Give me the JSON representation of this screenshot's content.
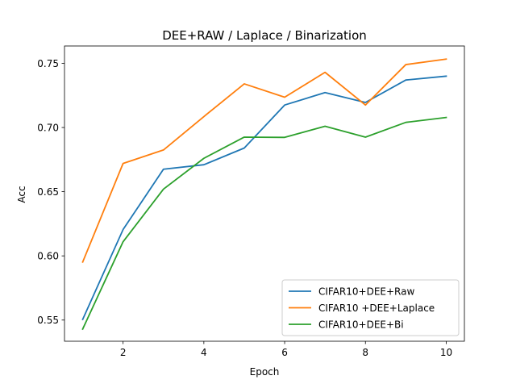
{
  "chart_data": {
    "type": "line",
    "title": "DEE+RAW / Laplace / Binarization",
    "xlabel": "Epoch",
    "ylabel": "Acc",
    "xlim": [
      0.55,
      10.45
    ],
    "ylim": [
      0.5335,
      0.7635
    ],
    "xticks": [
      2,
      4,
      6,
      8,
      10
    ],
    "yticks": [
      0.55,
      0.6,
      0.65,
      0.7,
      0.75
    ],
    "xtick_labels": [
      "2",
      "4",
      "6",
      "8",
      "10"
    ],
    "ytick_labels": [
      "0.55",
      "0.60",
      "0.65",
      "0.70",
      "0.75"
    ],
    "grid": false,
    "legend_position": "lower-right",
    "x": [
      1,
      2,
      3,
      4,
      5,
      6,
      7,
      8,
      9,
      10
    ],
    "series": [
      {
        "name": "CIFAR10+DEE+Raw",
        "color": "#1f77b4",
        "values": [
          0.5505,
          0.6205,
          0.6675,
          0.671,
          0.684,
          0.7175,
          0.7272,
          0.7195,
          0.737,
          0.74
        ]
      },
      {
        "name": "CIFAR10 +DEE+Laplace",
        "color": "#ff7f0e",
        "values": [
          0.5952,
          0.672,
          0.6825,
          0.7085,
          0.734,
          0.7236,
          0.743,
          0.7175,
          0.749,
          0.7533
        ]
      },
      {
        "name": "CIFAR10+DEE+Bi",
        "color": "#2ca02c",
        "values": [
          0.543,
          0.611,
          0.652,
          0.676,
          0.6925,
          0.6923,
          0.701,
          0.6925,
          0.704,
          0.7078
        ]
      }
    ]
  }
}
